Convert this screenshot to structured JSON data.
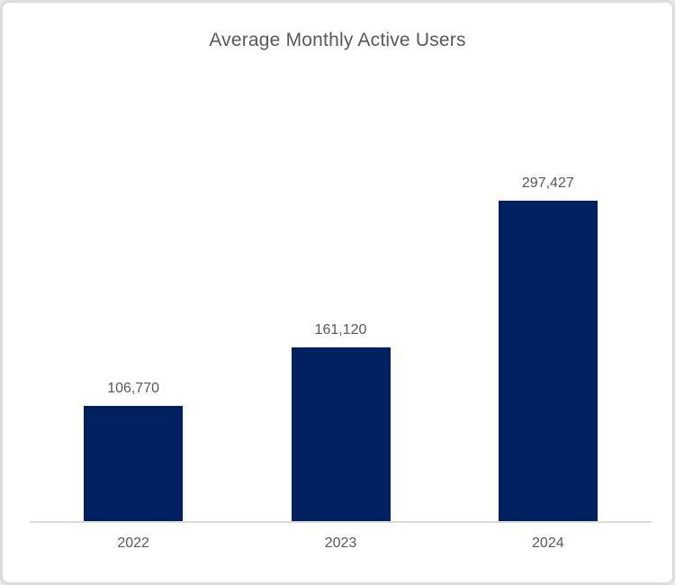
{
  "chart_data": {
    "type": "bar",
    "title": "Average Monthly Active Users",
    "categories": [
      "2022",
      "2023",
      "2024"
    ],
    "values": [
      106770,
      161120,
      297427
    ],
    "data_labels": [
      "106,770",
      "161,120",
      "297,427"
    ],
    "xlabel": "",
    "ylabel": "",
    "legend": "none",
    "grid": "off",
    "colors": {
      "bar": "#002060",
      "axis_line": "#d9d9d9",
      "text": "#595959",
      "frame_border": "#dcdcdc",
      "background": "#ffffff"
    }
  }
}
